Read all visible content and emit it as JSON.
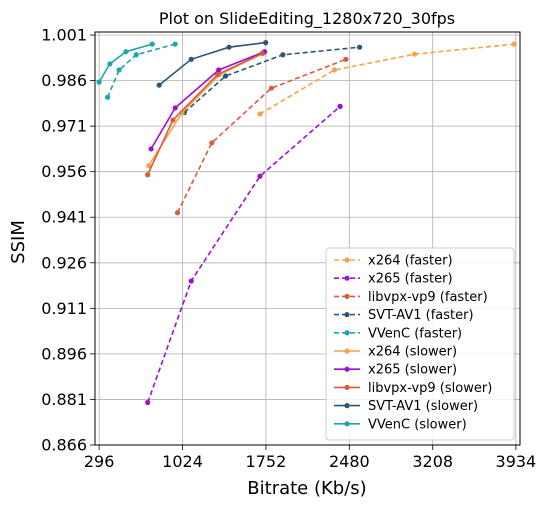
{
  "chart_data": {
    "type": "line",
    "title": "Plot on SlideEditing_1280x720_30fps",
    "xlabel": "Bitrate (Kb/s)",
    "ylabel": "SSIM",
    "xlim": [
      260,
      3970
    ],
    "ylim": [
      0.866,
      1.002
    ],
    "x_ticks": [
      296,
      1024,
      1752,
      2480,
      3208,
      3934
    ],
    "y_ticks": [
      0.866,
      0.881,
      0.896,
      0.911,
      0.926,
      0.941,
      0.956,
      0.971,
      0.986,
      1.001
    ],
    "x_tick_labels": [
      "296",
      "1024",
      "1752",
      "2480",
      "3208",
      "3934"
    ],
    "y_tick_labels": [
      "0.866",
      "0.881",
      "0.896",
      "0.911",
      "0.926",
      "0.941",
      "0.956",
      "0.971",
      "0.986",
      "1.001"
    ],
    "grid": true,
    "legend_position": "lower-right",
    "series": [
      {
        "name": "x264 (faster)",
        "color": "#f4a44a",
        "dashed": true,
        "x": [
          1700,
          2350,
          3050,
          3920
        ],
        "y": [
          0.975,
          0.9895,
          0.9947,
          0.998
        ]
      },
      {
        "name": "x265 (faster)",
        "color": "#9b0fd6",
        "dashed": true,
        "x": [
          720,
          1100,
          1700,
          2400
        ],
        "y": [
          0.88,
          0.92,
          0.9545,
          0.9775
        ]
      },
      {
        "name": "libvpx-vp9 (faster)",
        "color": "#dc5a3c",
        "dashed": true,
        "x": [
          980,
          1280,
          1800,
          2450
        ],
        "y": [
          0.9425,
          0.9655,
          0.9835,
          0.993
        ]
      },
      {
        "name": "SVT-AV1 (faster)",
        "color": "#2d5576",
        "dashed": true,
        "x": [
          1040,
          1400,
          1900,
          2570
        ],
        "y": [
          0.9755,
          0.9875,
          0.9945,
          0.997
        ]
      },
      {
        "name": "VVenC (faster)",
        "color": "#18a6b0",
        "dashed": true,
        "x": [
          370,
          470,
          620,
          960
        ],
        "y": [
          0.9805,
          0.9895,
          0.9945,
          0.998
        ]
      },
      {
        "name": "x264 (slower)",
        "color": "#f4a44a",
        "dashed": false,
        "x": [
          730,
          1020,
          1350,
          1730
        ],
        "y": [
          0.958,
          0.9755,
          0.988,
          0.995
        ]
      },
      {
        "name": "x265 (slower)",
        "color": "#9b0fd6",
        "dashed": false,
        "x": [
          750,
          960,
          1340,
          1740
        ],
        "y": [
          0.9635,
          0.977,
          0.9895,
          0.9955
        ]
      },
      {
        "name": "libvpx-vp9 (slower)",
        "color": "#dc5a3c",
        "dashed": false,
        "x": [
          720,
          940,
          1330,
          1720
        ],
        "y": [
          0.955,
          0.973,
          0.988,
          0.995
        ]
      },
      {
        "name": "SVT-AV1 (slower)",
        "color": "#2d5576",
        "dashed": false,
        "x": [
          820,
          1100,
          1430,
          1750
        ],
        "y": [
          0.9845,
          0.993,
          0.997,
          0.9985
        ]
      },
      {
        "name": "VVenC (slower)",
        "color": "#18a6b0",
        "dashed": false,
        "x": [
          296,
          390,
          530,
          760
        ],
        "y": [
          0.9855,
          0.9915,
          0.9955,
          0.998
        ]
      }
    ]
  }
}
